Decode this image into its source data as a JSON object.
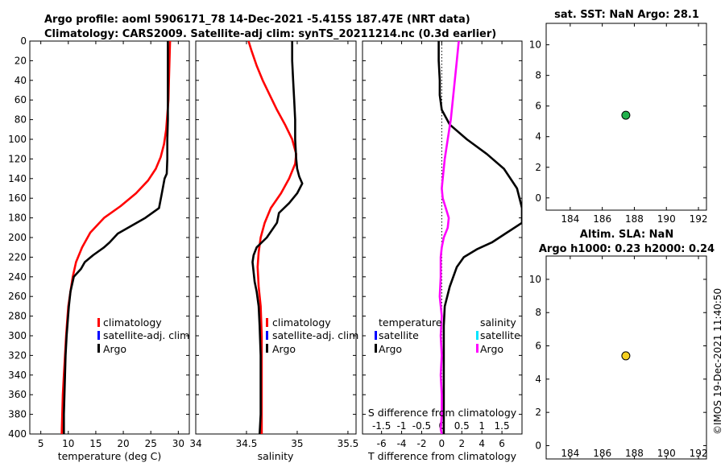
{
  "figure": {
    "title_line1": "Argo profile: aoml 5906171_78 14-Dec-2021 -5.415S 187.47E (NRT data)",
    "title_line2": "Climatology: CARS2009. Satellite-adj clim: synTS_20211214.nc (0.3d earlier)",
    "watermark": "©IMOS 19-Dec-2021 11:40:50"
  },
  "colors": {
    "climatology": "#ff0000",
    "satellite_adj": "#0000ff",
    "argo": "#000000",
    "argo_salinity_diff": "#ff00ff",
    "satellite_salinity": "#00e5ff",
    "sst_marker": "#22b14c",
    "sla_marker": "#f5d020"
  },
  "chart_data": [
    {
      "id": "temperature",
      "type": "line",
      "xlabel": "temperature (deg C)",
      "ylabel": "",
      "xlim": [
        3,
        32
      ],
      "ylim": [
        0,
        400
      ],
      "y_reversed": true,
      "xticks": [
        5,
        10,
        15,
        20,
        25,
        30
      ],
      "yticks": [
        0,
        20,
        40,
        60,
        80,
        100,
        120,
        140,
        160,
        180,
        200,
        220,
        240,
        260,
        280,
        300,
        320,
        340,
        360,
        380,
        400
      ],
      "legend": [
        "climatology",
        "satellite-adj. clim",
        "Argo"
      ],
      "series": [
        {
          "name": "climatology",
          "color_key": "climatology",
          "x": [
            28.5,
            28.4,
            28.3,
            28.2,
            28.0,
            27.8,
            27.4,
            26.8,
            25.9,
            24.5,
            22.3,
            19.5,
            16.5,
            14.0,
            12.5,
            11.4,
            10.8,
            10.4,
            10.0,
            9.8,
            9.6,
            9.4,
            9.2,
            9.0,
            8.9,
            8.8
          ],
          "y": [
            0,
            20,
            40,
            60,
            75,
            90,
            105,
            118,
            130,
            142,
            155,
            168,
            180,
            195,
            210,
            225,
            240,
            255,
            270,
            285,
            300,
            320,
            340,
            360,
            380,
            400
          ]
        },
        {
          "name": "Argo",
          "color_key": "argo",
          "x": [
            28.1,
            28.1,
            28.1,
            28.1,
            28.0,
            28.0,
            27.9,
            27.5,
            27.0,
            26.5,
            24.0,
            21.5,
            19.0,
            17.5,
            16.5,
            14.5,
            13.0,
            12.3,
            11.0,
            10.4,
            10.1,
            9.9,
            9.7,
            9.5,
            9.4,
            9.3,
            9.2,
            9.2
          ],
          "y": [
            0,
            20,
            60,
            80,
            100,
            120,
            135,
            140,
            155,
            170,
            180,
            188,
            196,
            205,
            210,
            218,
            225,
            232,
            240,
            255,
            270,
            285,
            300,
            320,
            340,
            360,
            380,
            400
          ]
        }
      ]
    },
    {
      "id": "salinity",
      "type": "line",
      "xlabel": "salinity",
      "ylabel": "",
      "xlim": [
        34.0,
        35.58
      ],
      "ylim": [
        0,
        400
      ],
      "y_reversed": true,
      "xticks": [
        34,
        34.5,
        35,
        35.5
      ],
      "xticklabels": [
        "34",
        "34.5",
        "35",
        "35.5"
      ],
      "legend": [
        "climatology",
        "satellite-adj. clim",
        "Argo"
      ],
      "series": [
        {
          "name": "climatology",
          "color_key": "climatology",
          "x": [
            34.52,
            34.55,
            34.6,
            34.66,
            34.73,
            34.8,
            34.88,
            34.95,
            34.99,
            34.98,
            34.92,
            34.84,
            34.74,
            34.68,
            34.64,
            34.62,
            34.61,
            34.62,
            34.64,
            34.65,
            34.65,
            34.65,
            34.65,
            34.65
          ],
          "y": [
            0,
            10,
            25,
            40,
            55,
            70,
            85,
            100,
            115,
            125,
            140,
            155,
            170,
            185,
            200,
            215,
            230,
            250,
            270,
            300,
            320,
            350,
            380,
            400
          ]
        },
        {
          "name": "Argo",
          "color_key": "argo",
          "x": [
            34.95,
            34.95,
            34.96,
            34.97,
            34.98,
            34.98,
            34.99,
            35.0,
            35.02,
            35.05,
            35.0,
            34.92,
            34.82,
            34.8,
            34.7,
            34.6,
            34.57,
            34.56,
            34.57,
            34.58,
            34.6,
            34.62,
            34.63,
            34.64,
            34.64,
            34.64,
            34.64,
            34.63
          ],
          "y": [
            0,
            20,
            40,
            60,
            80,
            100,
            120,
            130,
            138,
            145,
            155,
            165,
            175,
            185,
            200,
            210,
            218,
            225,
            235,
            245,
            255,
            270,
            290,
            320,
            340,
            360,
            380,
            400
          ]
        }
      ]
    },
    {
      "id": "difference",
      "type": "line",
      "xlabel": "T difference from climatology",
      "xlabel2": "S difference from climatology",
      "xlim": [
        -7.9,
        8.0
      ],
      "ylim": [
        0,
        400
      ],
      "y_reversed": true,
      "xticks": [
        -6,
        -4,
        -2,
        0,
        2,
        4,
        6
      ],
      "xticks2": [
        -1.5,
        -1,
        -0.5,
        0,
        0.5,
        1,
        1.5
      ],
      "x2_scale": 4,
      "legend_temperature_title": "temperature",
      "legend_salinity_title": "salinity",
      "legend_satellite": "satellite",
      "legend_argo": "Argo",
      "series": [
        {
          "name": "T diff Argo",
          "color_key": "argo",
          "x": [
            -0.3,
            -0.3,
            -0.2,
            -0.2,
            0.0,
            0.8,
            2.5,
            4.5,
            6.2,
            7.5,
            8.0,
            8.0,
            6.5,
            5.0,
            3.5,
            2.2,
            1.5,
            0.8,
            0.3,
            0.2,
            0.2,
            0.2,
            0.2,
            0.2,
            0.2,
            0.2
          ],
          "y": [
            0,
            20,
            40,
            55,
            70,
            85,
            100,
            115,
            130,
            150,
            170,
            185,
            195,
            205,
            212,
            220,
            230,
            250,
            270,
            290,
            310,
            330,
            350,
            370,
            390,
            400
          ]
        },
        {
          "name": "S diff Argo",
          "color_key": "argo_salinity_diff",
          "x": [
            1.7,
            1.5,
            1.3,
            1.1,
            0.9,
            0.6,
            0.3,
            0.1,
            0.0,
            0.1,
            0.4,
            0.7,
            0.6,
            0.2,
            0.0,
            -0.1,
            -0.1,
            -0.2,
            0.0,
            -0.1,
            0.0,
            -0.1,
            0.0,
            0.0,
            -0.1,
            0.0
          ],
          "y": [
            0,
            20,
            40,
            60,
            80,
            100,
            120,
            140,
            150,
            160,
            170,
            180,
            190,
            200,
            210,
            220,
            240,
            260,
            280,
            300,
            320,
            340,
            360,
            380,
            395,
            400
          ]
        }
      ]
    },
    {
      "id": "sst",
      "type": "scatter",
      "title": "sat. SST: NaN Argo: 28.1",
      "xlim": [
        182.5,
        192.5
      ],
      "ylim": [
        -0.8,
        11.4
      ],
      "xticks": [
        184,
        186,
        188,
        190,
        192
      ],
      "yticks": [
        0,
        2,
        4,
        6,
        8,
        10
      ],
      "points": [
        {
          "x": 187.47,
          "y": 5.4,
          "color_key": "sst_marker"
        }
      ]
    },
    {
      "id": "sla",
      "type": "scatter",
      "title_line1": "Altim. SLA: NaN",
      "title_line2": "Argo h1000: 0.23 h2000: 0.24",
      "xlim": [
        182.5,
        192.5
      ],
      "ylim": [
        -0.8,
        11.4
      ],
      "xticks": [
        184,
        186,
        188,
        190,
        192
      ],
      "yticks": [
        0,
        2,
        4,
        6,
        8,
        10
      ],
      "points": [
        {
          "x": 187.47,
          "y": 5.4,
          "color_key": "sla_marker"
        }
      ]
    }
  ]
}
